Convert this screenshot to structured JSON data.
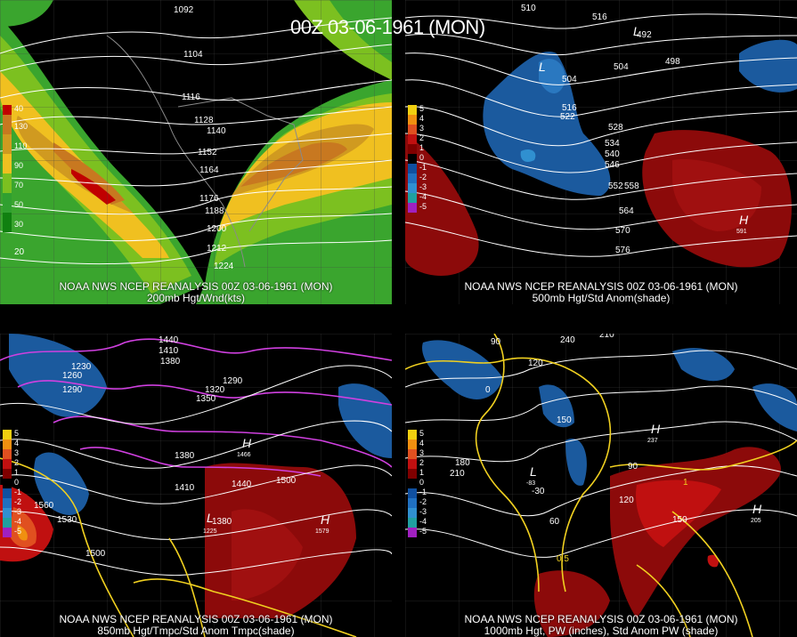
{
  "title": "00Z 03-06-1961 (MON)",
  "panels": {
    "p200": {
      "line1": "NOAA NWS NCEP REANALYSIS 00Z 03-06-1961 (MON)",
      "line2": "200mb Hgt/Wnd(kts)",
      "legend": [
        "40",
        "130",
        "110",
        "90",
        "70",
        "50",
        "30"
      ],
      "legend_colors": [
        "#c00000",
        "#c87820",
        "#d09a20",
        "#f0c020",
        "#7cc020",
        "#30a030",
        "#108010"
      ],
      "contour_labels": [
        "1092",
        "1104",
        "1116",
        "1128",
        "1140",
        "1152",
        "1164",
        "1176",
        "1188",
        "1200",
        "1212",
        "1224"
      ],
      "lat_labels": [
        "20"
      ]
    },
    "p500": {
      "line1": "NOAA NWS NCEP REANALYSIS 00Z 03-06-1961 (MON)",
      "line2": "500mb Hgt/Std Anom(shade)",
      "legend": [
        "5",
        "4",
        "3",
        "2",
        "1",
        "0",
        "-1",
        "-2",
        "-3",
        "-4",
        "-5"
      ],
      "legend_colors": [
        "#f0d010",
        "#f09010",
        "#e05020",
        "#c01010",
        "#800000",
        "#000000",
        "#1050a0",
        "#2070c0",
        "#3090d0",
        "#20a0a0",
        "#a020c0"
      ],
      "contour_labels": [
        "510",
        "504",
        "516",
        "522",
        "528",
        "534",
        "540",
        "546",
        "552",
        "558",
        "564",
        "570",
        "576",
        "492",
        "498",
        "504",
        "516"
      ],
      "highs_lows": [
        {
          "sym": "L",
          "val": "504"
        },
        {
          "sym": "H",
          "val": "591"
        },
        {
          "sym": "L",
          "val": "492"
        }
      ]
    },
    "p850": {
      "line1": "NOAA NWS NCEP REANALYSIS 00Z 03-06-1961 (MON)",
      "line2": "850mb Hgt/Tmpc/Std Anom Tmpc(shade)",
      "legend": [
        "5",
        "4",
        "3",
        "2",
        "1",
        "0",
        "-1",
        "-2",
        "-3",
        "-4",
        "-5"
      ],
      "legend_colors": [
        "#f0d010",
        "#f09010",
        "#e05020",
        "#c01010",
        "#800000",
        "#000000",
        "#1050a0",
        "#2070c0",
        "#3090d0",
        "#20a0a0",
        "#a020c0"
      ],
      "contour_labels": [
        "1440",
        "1410",
        "1380",
        "1230",
        "1260",
        "1290",
        "1320",
        "1350",
        "1380",
        "1410",
        "1440",
        "1500",
        "1530",
        "1560",
        "1500",
        "1380",
        "1290"
      ],
      "highs_lows": [
        {
          "sym": "H",
          "val": "1466"
        },
        {
          "sym": "H",
          "val": "1579"
        },
        {
          "sym": "L",
          "val": "1225"
        }
      ]
    },
    "p1000": {
      "line1": "NOAA NWS NCEP REANALYSIS 00Z 03-06-1961 (MON)",
      "line2": "1000mb Hgt, PW (inches), Std Anom PW (shade)",
      "legend": [
        "5",
        "4",
        "3",
        "2",
        "1",
        "0",
        "-1",
        "-2",
        "-3",
        "-4",
        "-5"
      ],
      "legend_colors": [
        "#f0d010",
        "#f09010",
        "#e05020",
        "#c01010",
        "#800000",
        "#000000",
        "#1050a0",
        "#2070c0",
        "#3090d0",
        "#20a0a0",
        "#a020c0"
      ],
      "contour_labels": [
        "90",
        "240",
        "210",
        "120",
        "0",
        "150",
        "180",
        "210",
        "-30",
        "60",
        "90",
        "120",
        "150",
        "0.5",
        "1"
      ],
      "highs_lows": [
        {
          "sym": "H",
          "val": "237"
        },
        {
          "sym": "H",
          "val": "205"
        },
        {
          "sym": "L",
          "val": "-83"
        }
      ]
    }
  },
  "colors": {
    "contour": "#ffffff",
    "pw_contour": "#f0d020",
    "temp_contour": "#d040e0",
    "coast": "#8a8a8a"
  }
}
